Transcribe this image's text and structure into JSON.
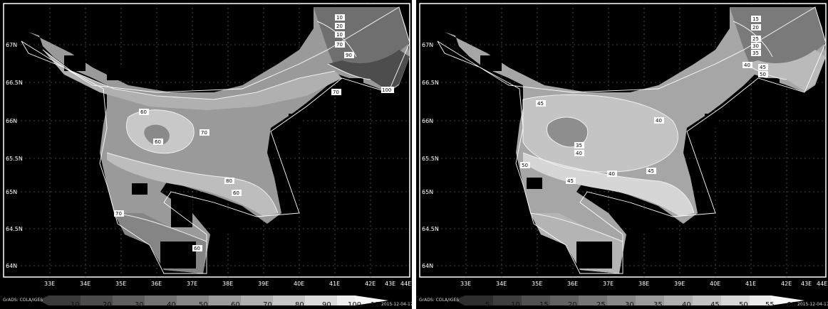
{
  "maps": [
    {
      "lon_ticks": [
        "33E",
        "34E",
        "35E",
        "36E",
        "37E",
        "38E",
        "39E",
        "40E",
        "41E",
        "42E",
        "43E",
        "44E"
      ],
      "lat_ticks": [
        "67N",
        "66.5N",
        "66N",
        "65.5N",
        "65N",
        "64.5N",
        "64N"
      ],
      "colorbar_values": [
        "10",
        "20",
        "30",
        "40",
        "50",
        "60",
        "70",
        "80",
        "90",
        "100",
        "110"
      ],
      "contour_labels": [
        "10",
        "20",
        "10",
        "70",
        "90",
        "100",
        "70",
        "60",
        "60",
        "70",
        "80",
        "60",
        "70",
        "60"
      ],
      "footer_left": "GrADS: COLA/IGES",
      "footer_right": "2015-12-04-17"
    },
    {
      "lon_ticks": [
        "33E",
        "34E",
        "35E",
        "36E",
        "37E",
        "38E",
        "39E",
        "40E",
        "41E",
        "42E",
        "43E",
        "44E"
      ],
      "lat_ticks": [
        "67N",
        "66.5N",
        "66N",
        "65.5N",
        "65N",
        "64.5N",
        "64N"
      ],
      "colorbar_values": [
        "5",
        "10",
        "15",
        "20",
        "25",
        "30",
        "35",
        "40",
        "45",
        "50",
        "55",
        "60"
      ],
      "contour_labels": [
        "15",
        "20",
        "25",
        "30",
        "35",
        "40",
        "45",
        "50",
        "45",
        "40",
        "35",
        "40",
        "40",
        "45",
        "45",
        "50"
      ],
      "footer_left": "GrADS: COLA/IGES",
      "footer_right": "2015-12-04-17"
    }
  ]
}
